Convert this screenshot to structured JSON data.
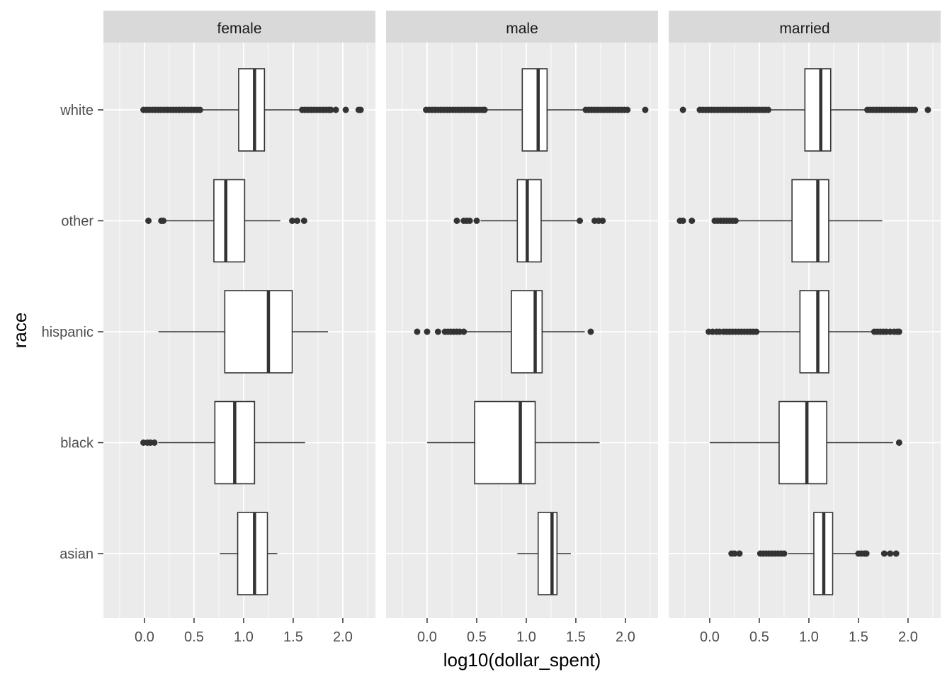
{
  "chart_data": {
    "type": "boxplot",
    "orientation": "horizontal",
    "xlabel": "log10(dollar_spent)",
    "ylabel": "race",
    "xlim": [
      -0.414,
      2.329
    ],
    "x_ticks": [
      0.0,
      0.5,
      1.0,
      1.5,
      2.0
    ],
    "x_tick_labels": [
      "0.0",
      "0.5",
      "1.0",
      "1.5",
      "2.0"
    ],
    "categories": [
      "white",
      "other",
      "hispanic",
      "black",
      "asian"
    ],
    "grid": true,
    "colors": {
      "panel_bg": "#EBEBEB",
      "strip_bg": "#D9D9D9",
      "grid": "#FFFFFF",
      "box_fill": "#FFFFFF",
      "box_line": "#333333"
    },
    "facets": [
      {
        "label": "female",
        "boxes": [
          {
            "category": "white",
            "whisker_low": 0.58,
            "q1": 0.95,
            "median": 1.11,
            "q3": 1.21,
            "whisker_high": 1.57,
            "outliers": [
              -0.01,
              0.02,
              0.05,
              0.08,
              0.11,
              0.14,
              0.17,
              0.2,
              0.23,
              0.26,
              0.29,
              0.32,
              0.35,
              0.38,
              0.41,
              0.44,
              0.47,
              0.5,
              0.53,
              0.56,
              1.59,
              1.62,
              1.65,
              1.68,
              1.71,
              1.74,
              1.77,
              1.8,
              1.83,
              1.86,
              1.88,
              1.93,
              2.03,
              2.16,
              2.18
            ]
          },
          {
            "category": "other",
            "whisker_low": 0.19,
            "q1": 0.7,
            "median": 0.82,
            "q3": 1.01,
            "whisker_high": 1.37,
            "outliers": [
              0.04,
              0.17,
              0.19,
              1.49,
              1.54,
              1.61
            ]
          },
          {
            "category": "hispanic",
            "whisker_low": 0.14,
            "q1": 0.81,
            "median": 1.25,
            "q3": 1.49,
            "whisker_high": 1.85,
            "outliers": []
          },
          {
            "category": "black",
            "whisker_low": 0.14,
            "q1": 0.71,
            "median": 0.91,
            "q3": 1.11,
            "whisker_high": 1.62,
            "outliers": [
              -0.01,
              0.03,
              0.06,
              0.1
            ]
          },
          {
            "category": "asian",
            "whisker_low": 0.76,
            "q1": 0.94,
            "median": 1.11,
            "q3": 1.24,
            "whisker_high": 1.34,
            "outliers": []
          }
        ]
      },
      {
        "label": "male",
        "boxes": [
          {
            "category": "white",
            "whisker_low": 0.59,
            "q1": 0.96,
            "median": 1.12,
            "q3": 1.21,
            "whisker_high": 1.58,
            "outliers": [
              -0.01,
              0.02,
              0.05,
              0.08,
              0.11,
              0.14,
              0.17,
              0.2,
              0.23,
              0.26,
              0.29,
              0.32,
              0.35,
              0.38,
              0.41,
              0.44,
              0.47,
              0.5,
              0.53,
              0.56,
              0.58,
              1.6,
              1.63,
              1.66,
              1.69,
              1.72,
              1.75,
              1.78,
              1.81,
              1.84,
              1.87,
              1.9,
              1.93,
              1.96,
              1.99,
              2.02,
              2.2
            ]
          },
          {
            "category": "other",
            "whisker_low": 0.54,
            "q1": 0.91,
            "median": 1.01,
            "q3": 1.15,
            "whisker_high": 1.51,
            "outliers": [
              0.3,
              0.37,
              0.4,
              0.43,
              0.5,
              1.54,
              1.69,
              1.73,
              1.77
            ]
          },
          {
            "category": "hispanic",
            "whisker_low": 0.39,
            "q1": 0.85,
            "median": 1.09,
            "q3": 1.16,
            "whisker_high": 1.59,
            "outliers": [
              -0.1,
              0.0,
              0.11,
              0.18,
              0.21,
              0.24,
              0.27,
              0.3,
              0.33,
              0.37,
              1.65
            ]
          },
          {
            "category": "black",
            "whisker_low": 0.0,
            "q1": 0.48,
            "median": 0.94,
            "q3": 1.09,
            "whisker_high": 1.74,
            "outliers": []
          },
          {
            "category": "asian",
            "whisker_low": 0.91,
            "q1": 1.12,
            "median": 1.26,
            "q3": 1.31,
            "whisker_high": 1.45,
            "outliers": []
          }
        ]
      },
      {
        "label": "married",
        "boxes": [
          {
            "category": "white",
            "whisker_low": 0.61,
            "q1": 0.96,
            "median": 1.12,
            "q3": 1.22,
            "whisker_high": 1.57,
            "outliers": [
              -0.27,
              -0.1,
              -0.07,
              -0.04,
              -0.01,
              0.02,
              0.05,
              0.08,
              0.11,
              0.14,
              0.17,
              0.2,
              0.23,
              0.26,
              0.29,
              0.32,
              0.35,
              0.38,
              0.41,
              0.44,
              0.47,
              0.5,
              0.53,
              0.56,
              0.59,
              1.59,
              1.62,
              1.65,
              1.68,
              1.71,
              1.74,
              1.77,
              1.8,
              1.83,
              1.86,
              1.89,
              1.92,
              1.95,
              1.98,
              2.01,
              2.04,
              2.07,
              2.2
            ]
          },
          {
            "category": "other",
            "whisker_low": 0.28,
            "q1": 0.83,
            "median": 1.09,
            "q3": 1.2,
            "whisker_high": 1.74,
            "outliers": [
              -0.3,
              -0.27,
              -0.18,
              0.05,
              0.08,
              0.11,
              0.14,
              0.17,
              0.2,
              0.23,
              0.26
            ]
          },
          {
            "category": "hispanic",
            "whisker_low": 0.49,
            "q1": 0.91,
            "median": 1.09,
            "q3": 1.2,
            "whisker_high": 1.64,
            "outliers": [
              -0.01,
              0.03,
              0.07,
              0.1,
              0.14,
              0.17,
              0.2,
              0.23,
              0.26,
              0.29,
              0.32,
              0.35,
              0.38,
              0.41,
              0.44,
              0.47,
              1.66,
              1.69,
              1.72,
              1.75,
              1.78,
              1.82,
              1.86,
              1.89,
              1.91
            ]
          },
          {
            "category": "black",
            "whisker_low": 0.0,
            "q1": 0.7,
            "median": 0.98,
            "q3": 1.18,
            "whisker_high": 1.85,
            "outliers": [
              1.91
            ]
          },
          {
            "category": "asian",
            "whisker_low": 0.79,
            "q1": 1.05,
            "median": 1.15,
            "q3": 1.24,
            "whisker_high": 1.49,
            "outliers": [
              0.22,
              0.25,
              0.3,
              0.51,
              0.54,
              0.57,
              0.6,
              0.63,
              0.66,
              0.69,
              0.72,
              0.75,
              1.5,
              1.53,
              1.56,
              1.58,
              1.76,
              1.82,
              1.88
            ]
          }
        ]
      }
    ]
  }
}
